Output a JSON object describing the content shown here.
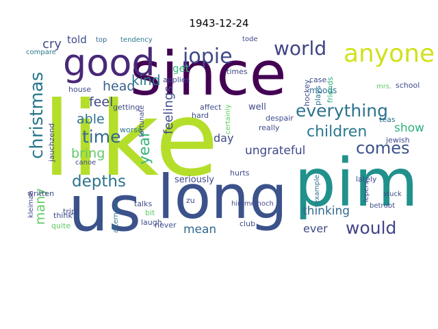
{
  "title": "1943-12-24",
  "palette": {
    "dark_purple": "#440154",
    "indigo": "#3b528b",
    "teal": "#21918c",
    "green": "#5ec962",
    "lime": "#b5de2b",
    "yellow_green": "#d0e11c",
    "gray_blue": "#414487"
  },
  "words": [
    {
      "text": "like",
      "color": "#b5de2b"
    },
    {
      "text": "since",
      "color": "#440154"
    },
    {
      "text": "long",
      "color": "#3b528b"
    },
    {
      "text": "pim",
      "color": "#21918c"
    },
    {
      "text": "us",
      "color": "#3b528b"
    },
    {
      "text": "good",
      "color": "#482878"
    },
    {
      "text": "anyone",
      "color": "#d0e11c"
    },
    {
      "text": "world",
      "color": "#414487"
    },
    {
      "text": "everything",
      "color": "#2c728e"
    },
    {
      "text": "jopie",
      "color": "#3e4a89"
    },
    {
      "text": "christmas",
      "color": "#2a788e"
    },
    {
      "text": "children",
      "color": "#2a788e"
    },
    {
      "text": "comes",
      "color": "#3b528b"
    },
    {
      "text": "would",
      "color": "#414487"
    },
    {
      "text": "time",
      "color": "#31688e"
    },
    {
      "text": "depths",
      "color": "#2c728e"
    },
    {
      "text": "many",
      "color": "#5ec962"
    },
    {
      "text": "show",
      "color": "#2db27d"
    },
    {
      "text": "feelings",
      "color": "#3e4a89"
    },
    {
      "text": "year",
      "color": "#35b779"
    },
    {
      "text": "able",
      "color": "#2c728e"
    },
    {
      "text": "head",
      "color": "#355f8d"
    },
    {
      "text": "kind",
      "color": "#2a788e"
    },
    {
      "text": "feel",
      "color": "#3e4a89"
    },
    {
      "text": "bring",
      "color": "#5ec962"
    },
    {
      "text": "cry",
      "color": "#3e4a89"
    },
    {
      "text": "told",
      "color": "#3e4a89"
    },
    {
      "text": "ungrateful",
      "color": "#3e4a89"
    },
    {
      "text": "thinking",
      "color": "#31688e"
    },
    {
      "text": "mean",
      "color": "#31688e"
    },
    {
      "text": "ever",
      "color": "#3e4a89"
    },
    {
      "text": "day",
      "color": "#3e4a89"
    },
    {
      "text": "get",
      "color": "#35b779"
    },
    {
      "text": "seriously",
      "color": "#3e4a89"
    },
    {
      "text": "well",
      "color": "#3e4a89"
    },
    {
      "text": "top",
      "color": "#31688e"
    },
    {
      "text": "tendency",
      "color": "#2a788e"
    },
    {
      "text": "tode",
      "color": "#3e4a89"
    },
    {
      "text": "compare",
      "color": "#2a788e"
    },
    {
      "text": "applies",
      "color": "#3e4a89"
    },
    {
      "text": "times",
      "color": "#3e4a89"
    },
    {
      "text": "moods",
      "color": "#2c728e"
    },
    {
      "text": "friends",
      "color": "#2db27d"
    },
    {
      "text": "school",
      "color": "#3e4a89"
    },
    {
      "text": "case",
      "color": "#3e4a89"
    },
    {
      "text": "mrs.",
      "color": "#5ec962"
    },
    {
      "text": "hockey",
      "color": "#3e4a89"
    },
    {
      "text": "plays",
      "color": "#2c728e"
    },
    {
      "text": "betrubt",
      "color": "#3e4a89"
    },
    {
      "text": "teas",
      "color": "#2c728e"
    },
    {
      "text": "jewish",
      "color": "#3e4a89"
    },
    {
      "text": "lately",
      "color": "#3e4a89"
    },
    {
      "text": "lepers",
      "color": "#3e4a89"
    },
    {
      "text": "stuck",
      "color": "#3e4a89"
    },
    {
      "text": "example",
      "color": "#2c728e"
    },
    {
      "text": "club",
      "color": "#3e4a89"
    },
    {
      "text": "himmelhoch",
      "color": "#3e4a89"
    },
    {
      "text": "hurts",
      "color": "#3e4a89"
    },
    {
      "text": "really",
      "color": "#3e4a89"
    },
    {
      "text": "despair",
      "color": "#3e4a89"
    },
    {
      "text": "certainly",
      "color": "#5ec962"
    },
    {
      "text": "affect",
      "color": "#3e4a89"
    },
    {
      "text": "zu",
      "color": "#3e4a89"
    },
    {
      "text": "hard",
      "color": "#3e4a89"
    },
    {
      "text": "house",
      "color": "#3e4a89"
    },
    {
      "text": "getting",
      "color": "#3e4a89"
    },
    {
      "text": "worse",
      "color": "#2c728e"
    },
    {
      "text": "fortunate",
      "color": "#3e4a89"
    },
    {
      "text": "jauchzend",
      "color": "#3e4a89"
    },
    {
      "text": "written",
      "color": "#3e4a89"
    },
    {
      "text": "kleiman",
      "color": "#3e4a89"
    },
    {
      "text": "trips",
      "color": "#3e4a89"
    },
    {
      "text": "think",
      "color": "#3e4a89"
    },
    {
      "text": "quite",
      "color": "#5ec962"
    },
    {
      "text": "canoe",
      "color": "#3e4a89"
    },
    {
      "text": "talks",
      "color": "#3e4a89"
    },
    {
      "text": "bit",
      "color": "#5ec962"
    },
    {
      "text": "laugh",
      "color": "#3e4a89"
    },
    {
      "text": "afternoon",
      "color": "#2c728e"
    },
    {
      "text": "never",
      "color": "#3e4a89"
    }
  ]
}
